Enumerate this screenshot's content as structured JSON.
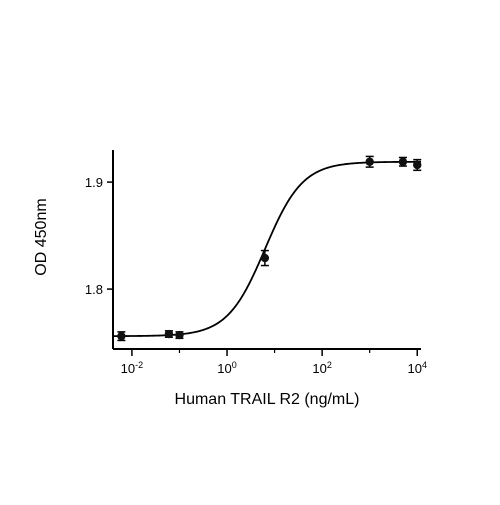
{
  "chart_data": {
    "type": "scatter",
    "title": "",
    "xlabel": "Human TRAIL R2 (ng/mL)",
    "ylabel": "OD 450nm",
    "xscale": "log",
    "xlim": [
      0.004,
      12000
    ],
    "ylim": [
      1.744,
      1.93
    ],
    "x_ticks": [
      {
        "base": "10",
        "exp": "-2",
        "value": 0.01
      },
      {
        "base": "10",
        "exp": "0",
        "value": 1
      },
      {
        "base": "10",
        "exp": "2",
        "value": 100
      },
      {
        "base": "10",
        "exp": "4",
        "value": 10000
      }
    ],
    "y_ticks": [
      {
        "label": "1.8",
        "value": 1.8
      },
      {
        "label": "1.9",
        "value": 1.9
      }
    ],
    "grid": false,
    "series": [
      {
        "points": [
          {
            "x": 0.006,
            "y": 1.756,
            "err": 0.004
          },
          {
            "x": 0.06,
            "y": 1.758,
            "err": 0.003
          },
          {
            "x": 0.1,
            "y": 1.757,
            "err": 0.003
          },
          {
            "x": 6.25,
            "y": 1.829,
            "err": 0.007
          },
          {
            "x": 1000,
            "y": 1.919,
            "err": 0.005
          },
          {
            "x": 5000,
            "y": 1.919,
            "err": 0.004
          },
          {
            "x": 10000,
            "y": 1.916,
            "err": 0.005
          }
        ],
        "fit": {
          "model": "4PL",
          "bottom": 1.756,
          "top": 1.919,
          "ec50": 6.3,
          "hill": 1.1
        }
      }
    ],
    "marker_color": "#111111",
    "line_color": "#000000"
  }
}
